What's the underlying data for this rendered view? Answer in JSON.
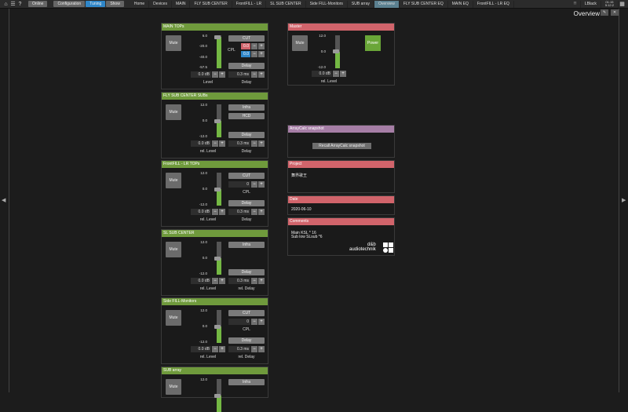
{
  "topbar": {
    "online": "Online",
    "modes": [
      "Configuration",
      "Tuning",
      "Show"
    ],
    "active_mode": "Tuning",
    "tabs": [
      "Home",
      "Devices",
      "MAIN",
      "FLY SUB CENTER",
      "FrontFILL - LR",
      "SL SUB CENTER",
      "Side FILL-Monitors",
      "SUB array",
      "Overview",
      "FLY SUB CENTER EQ",
      "MAIN  EQ",
      "FrontFILL - LR EQ"
    ],
    "active_tab": "Overview",
    "status1": "!!",
    "status2": "LBlack",
    "status3": "01:15",
    "status4": "5:12:2"
  },
  "header": {
    "title": "Overview"
  },
  "panels": [
    {
      "title": "MAIN  TOPs",
      "mute": "Mute",
      "scale": [
        "6.0",
        "-20.0",
        "-40.0",
        "-57.5"
      ],
      "level_frac": 0.95,
      "level": "0.0 dB",
      "level_label": "Level",
      "buttons": [
        "CUT"
      ],
      "cpl_label": "CPL",
      "cpl_values": [
        "0.0",
        "0.0"
      ],
      "delay": "Delay",
      "delay_value": "0.3 ms",
      "delay_label": "Delay"
    },
    {
      "title": "FLY SUB CENTER SUBs",
      "mute": "Mute",
      "scale": [
        "12.0",
        "0.0",
        "-12.0"
      ],
      "level_frac": 0.5,
      "level": "0.0 dB",
      "level_label": "rel. Level",
      "buttons": [
        "Infra",
        "HCD"
      ],
      "delay": "Delay",
      "delay_value": "0.3 ms",
      "delay_label": "Delay"
    },
    {
      "title": "FrontFILL - LR TOPs",
      "mute": "Mute",
      "scale": [
        "12.0",
        "0.0",
        "-12.0"
      ],
      "level_frac": 0.5,
      "level": "0.0 dB",
      "level_label": "rel. Level",
      "buttons": [
        "CUT"
      ],
      "cpl_label": "CPL",
      "cpl_single": "0",
      "delay": "Delay",
      "delay_value": "0.3 ms",
      "delay_label": "Delay"
    },
    {
      "title": "SL SUB CENTER",
      "mute": "Mute",
      "scale": [
        "12.0",
        "0.0",
        "-12.0"
      ],
      "level_frac": 0.5,
      "level": "0.0 dB",
      "level_label": "rel. Level",
      "buttons": [
        "Infra"
      ],
      "delay": "Delay",
      "delay_value": "0.3 ms",
      "delay_label": "rel. Delay"
    },
    {
      "title": "Side FILL-Monitors",
      "mute": "Mute",
      "scale": [
        "12.0",
        "0.0",
        "-12.0"
      ],
      "level_frac": 0.5,
      "level": "0.0 dB",
      "level_label": "rel. Level",
      "buttons": [
        "CUT"
      ],
      "cpl_label": "CPL",
      "cpl_single": "0",
      "delay": "Delay",
      "delay_value": "0.3 ms",
      "delay_label": "rel. Delay"
    },
    {
      "title": "SUB array",
      "mute": "Mute",
      "scale": [
        "12.0"
      ],
      "level_frac": 0.5,
      "buttons": [
        "Infra"
      ]
    }
  ],
  "master": {
    "title": "Master",
    "mute": "Mute",
    "power": "Power",
    "scale": [
      "12.0",
      "0.0",
      "-12.0"
    ],
    "level_frac": 0.5,
    "level": "0.0 dB",
    "level_label": "rel. Level"
  },
  "arraycalc": {
    "title": "ArrayCalc snapshot",
    "button": "Recall ArrayCalc snapshot"
  },
  "project": {
    "title": "Project",
    "value": "舞界歌王"
  },
  "date": {
    "title": "Date",
    "value": "2020-06-10"
  },
  "comments": {
    "title": "Comments",
    "lines": [
      "Main KSL * 16",
      "Sub low SLsub *6"
    ]
  },
  "logo": {
    "line1": "d&b",
    "line2": "audiotechnik"
  },
  "colors": {
    "green": "#6f9a3c",
    "red": "#d1646b",
    "purple": "#a67ea6",
    "blue": "#2f86c8",
    "fader": "#74b843"
  }
}
